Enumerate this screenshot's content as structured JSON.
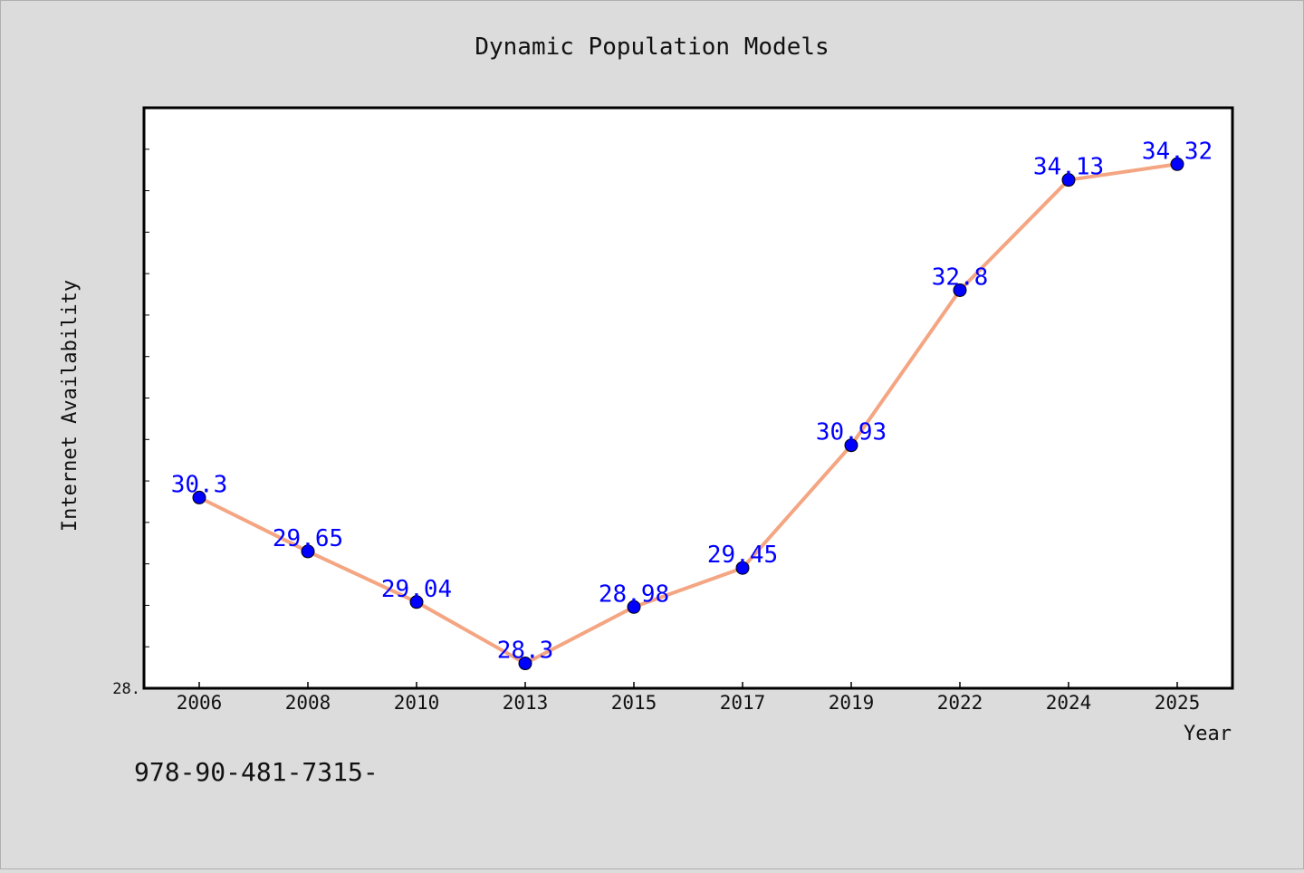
{
  "chart_data": {
    "type": "line",
    "title": "Dynamic Population Models",
    "xlabel": "Year",
    "ylabel": "Internet Availability",
    "categories": [
      "2006",
      "2008",
      "2010",
      "2013",
      "2015",
      "2017",
      "2019",
      "2022",
      "2024",
      "2025"
    ],
    "series": [
      {
        "values": [
          30.3,
          29.65,
          29.04,
          28.3,
          28.98,
          29.45,
          30.93,
          32.8,
          34.13,
          34.32
        ],
        "labels": [
          "30.3",
          "29.65",
          "29.04",
          "28.3",
          "28.98",
          "29.45",
          "30.93",
          "32.8",
          "34.13",
          "34.32"
        ]
      }
    ],
    "ylim": [
      28.0,
      35.0
    ],
    "y_tick_label": "28.",
    "grid": false,
    "annotation": "978-90-481-7315-",
    "colors": {
      "line": "#f4a582",
      "marker": "#0000ff",
      "data_label": "#0000ff",
      "background": "#dcdcdc",
      "plot_area": "#ffffff"
    }
  }
}
